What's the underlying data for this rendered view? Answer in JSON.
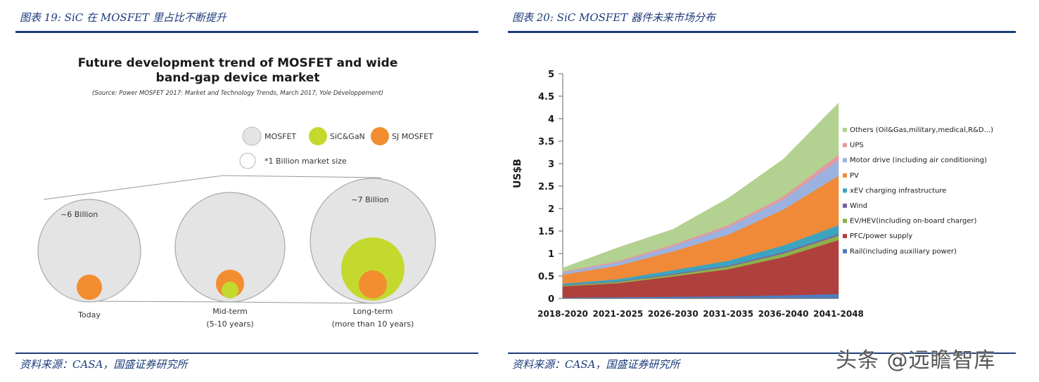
{
  "left": {
    "figure_title": "图表 19:  SiC 在 MOSFET 里占比不断提升",
    "source": "资料来源：CASA，国盛证券研究所",
    "image": {
      "title_line1": "Future development trend of MOSFET and wide",
      "title_line2": "band-gap device market",
      "subtitle": "(Source: Power MOSFET 2017: Market and Technology Trends, March 2017, Yole Développement)",
      "legend": [
        {
          "label": "MOSFET",
          "color": "#e4e4e4"
        },
        {
          "label": "SiC&GaN",
          "color": "#c4d92e"
        },
        {
          "label": "SJ MOSFET",
          "color": "#f28d30"
        }
      ],
      "legend_note": "*1 Billion market size",
      "stages": [
        {
          "value_label": "~6 Billion",
          "name": "Today",
          "sub": ""
        },
        {
          "value_label": "",
          "name": "Mid-term",
          "sub": "(5-10 years)"
        },
        {
          "value_label": "~7 Billion",
          "name": "Long-term",
          "sub": "(more than 10 years)"
        }
      ]
    }
  },
  "right": {
    "figure_title": "图表 20:  SiC MOSFET 器件未来市场分布",
    "source": "资料来源：CASA，国盛证券研究所"
  },
  "watermark": "头条 @远瞻智库",
  "chart_data": {
    "type": "area",
    "stacked": true,
    "ylabel": "US$B",
    "ylim": [
      0,
      5
    ],
    "yticks": [
      "0",
      "0.5",
      "1",
      "1.5",
      "2",
      "2.5",
      "3",
      "3.5",
      "4",
      "4.5",
      "5"
    ],
    "categories": [
      "2018-2020",
      "2021-2025",
      "2026-2030",
      "2031-2035",
      "2036-2040",
      "2041-2048"
    ],
    "legend_position": "right",
    "series": [
      {
        "name": "Rail(including auxiliary power)",
        "color": "#4f7cc0",
        "values": [
          0.02,
          0.03,
          0.04,
          0.05,
          0.07,
          0.1
        ]
      },
      {
        "name": "PFC/power supply",
        "color": "#b0403d",
        "values": [
          0.25,
          0.31,
          0.45,
          0.6,
          0.85,
          1.2
        ]
      },
      {
        "name": "EV/HEV(including on-board charger)",
        "color": "#8fb04a",
        "values": [
          0.02,
          0.03,
          0.04,
          0.06,
          0.08,
          0.1
        ]
      },
      {
        "name": "Wind",
        "color": "#7860a4",
        "values": [
          0.01,
          0.01,
          0.02,
          0.02,
          0.03,
          0.03
        ]
      },
      {
        "name": "xEV charging infrastructure",
        "color": "#3ea3bf",
        "values": [
          0.03,
          0.05,
          0.08,
          0.11,
          0.15,
          0.2
        ]
      },
      {
        "name": "PV",
        "color": "#f08a38",
        "values": [
          0.2,
          0.3,
          0.42,
          0.58,
          0.8,
          1.1
        ]
      },
      {
        "name": "Motor drive (including air conditioning)",
        "color": "#9bb2e0",
        "values": [
          0.05,
          0.07,
          0.11,
          0.16,
          0.22,
          0.35
        ]
      },
      {
        "name": "UPS",
        "color": "#e39aa0",
        "values": [
          0.02,
          0.03,
          0.04,
          0.05,
          0.07,
          0.12
        ]
      },
      {
        "name": "Others (Oil&Gas,military,medical,R&D...)",
        "color": "#b3d190",
        "values": [
          0.08,
          0.3,
          0.34,
          0.6,
          0.83,
          1.15
        ]
      }
    ]
  }
}
